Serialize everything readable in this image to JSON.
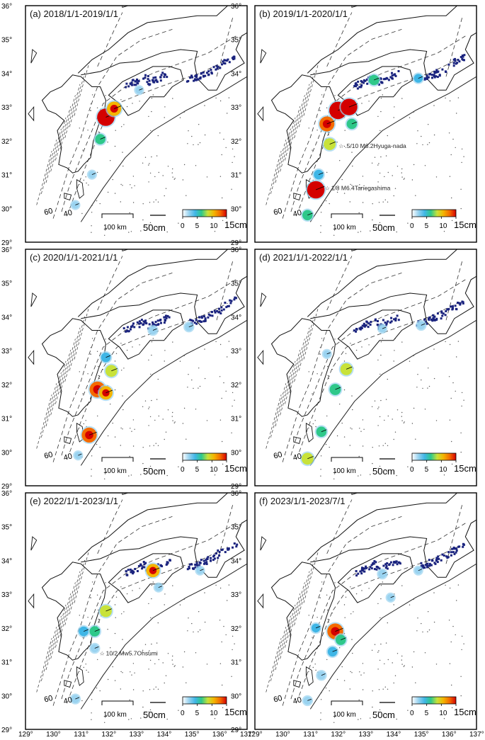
{
  "figure": {
    "lon_ticks": [
      "129°",
      "130°",
      "131°",
      "132°",
      "133°",
      "134°",
      "135°",
      "136°",
      "137°"
    ],
    "lat_ticks": [
      "36°",
      "35°",
      "34°",
      "33°",
      "32°",
      "31°",
      "30°",
      "29°"
    ],
    "lon_range": [
      129,
      137
    ],
    "lat_range": [
      29,
      36
    ],
    "scale_bar_label": "100 km",
    "vector_scale_label": "50cm",
    "colorbar": {
      "ticks": [
        "0",
        "5",
        "10",
        "15cm"
      ],
      "range": [
        0,
        15
      ],
      "colors": [
        "#ffffff",
        "#9ad3f0",
        "#3fb6e6",
        "#2ec88a",
        "#c8e23a",
        "#f4b400",
        "#f46a00",
        "#d40000"
      ]
    },
    "contour_labels": [
      "60",
      "40"
    ]
  },
  "panels": [
    {
      "label": "(a) 2018/1/1-2019/1/1",
      "annotations": [],
      "hotspots": [
        {
          "lon": 131.9,
          "lat": 32.7,
          "amp": 15
        },
        {
          "lon": 132.2,
          "lat": 32.95,
          "amp": 11
        },
        {
          "lon": 131.7,
          "lat": 32.05,
          "amp": 6
        },
        {
          "lon": 131.4,
          "lat": 31.0,
          "amp": 2
        },
        {
          "lon": 130.8,
          "lat": 30.1,
          "amp": 2
        },
        {
          "lon": 133.1,
          "lat": 33.5,
          "amp": 2
        }
      ]
    },
    {
      "label": "(b) 2019/1/1-2020/1/1",
      "annotations": [
        {
          "text": ".5/10 M6.2Hyuga-nada",
          "lon": 132.1,
          "lat": 31.85
        },
        {
          "text": "1/8 M6.4Tanegashima",
          "lon": 131.6,
          "lat": 30.6
        }
      ],
      "hotspots": [
        {
          "lon": 132.0,
          "lat": 32.9,
          "amp": 15
        },
        {
          "lon": 132.4,
          "lat": 33.0,
          "amp": 14
        },
        {
          "lon": 131.6,
          "lat": 32.5,
          "amp": 12
        },
        {
          "lon": 131.7,
          "lat": 31.9,
          "amp": 8
        },
        {
          "lon": 131.2,
          "lat": 30.55,
          "amp": 15
        },
        {
          "lon": 131.3,
          "lat": 31.0,
          "amp": 5
        },
        {
          "lon": 130.9,
          "lat": 29.8,
          "amp": 6
        },
        {
          "lon": 132.5,
          "lat": 32.5,
          "amp": 6
        },
        {
          "lon": 133.3,
          "lat": 33.8,
          "amp": 6
        },
        {
          "lon": 134.9,
          "lat": 33.85,
          "amp": 4
        }
      ]
    },
    {
      "label": "(c) 2020/1/1-2021/1/1",
      "annotations": [],
      "hotspots": [
        {
          "lon": 131.6,
          "lat": 31.85,
          "amp": 13
        },
        {
          "lon": 131.9,
          "lat": 31.75,
          "amp": 10
        },
        {
          "lon": 131.3,
          "lat": 30.5,
          "amp": 12
        },
        {
          "lon": 132.1,
          "lat": 32.4,
          "amp": 8
        },
        {
          "lon": 131.9,
          "lat": 32.8,
          "amp": 5
        },
        {
          "lon": 133.6,
          "lat": 33.6,
          "amp": 3
        },
        {
          "lon": 134.9,
          "lat": 33.7,
          "amp": 3
        },
        {
          "lon": 130.9,
          "lat": 29.9,
          "amp": 2
        }
      ]
    },
    {
      "label": "(d) 2021/1/1-2022/1/1",
      "annotations": [],
      "hotspots": [
        {
          "lon": 132.3,
          "lat": 32.45,
          "amp": 8
        },
        {
          "lon": 131.9,
          "lat": 31.85,
          "amp": 7
        },
        {
          "lon": 131.4,
          "lat": 30.6,
          "amp": 6
        },
        {
          "lon": 130.9,
          "lat": 29.8,
          "amp": 8
        },
        {
          "lon": 131.6,
          "lat": 32.9,
          "amp": 2
        },
        {
          "lon": 133.6,
          "lat": 33.65,
          "amp": 2
        },
        {
          "lon": 135.0,
          "lat": 33.75,
          "amp": 3
        }
      ]
    },
    {
      "label": "(e) 2022/1/1-2023/1/1",
      "annotations": [
        {
          "text": "10/2 Mw5.7Ohsumi",
          "lon": 131.75,
          "lat": 31.25
        }
      ],
      "hotspots": [
        {
          "lon": 133.6,
          "lat": 33.7,
          "amp": 10
        },
        {
          "lon": 131.9,
          "lat": 32.5,
          "amp": 8
        },
        {
          "lon": 131.1,
          "lat": 31.9,
          "amp": 5
        },
        {
          "lon": 131.5,
          "lat": 31.9,
          "amp": 6
        },
        {
          "lon": 131.5,
          "lat": 31.4,
          "amp": 3
        },
        {
          "lon": 130.8,
          "lat": 29.9,
          "amp": 3
        },
        {
          "lon": 133.8,
          "lat": 33.2,
          "amp": 2
        },
        {
          "lon": 135.3,
          "lat": 33.7,
          "amp": 2
        }
      ]
    },
    {
      "label": "(f) 2023/1/1-2023/7/1",
      "annotations": [],
      "hotspots": [
        {
          "lon": 131.9,
          "lat": 31.9,
          "amp": 13
        },
        {
          "lon": 132.1,
          "lat": 31.65,
          "amp": 6
        },
        {
          "lon": 131.2,
          "lat": 32.0,
          "amp": 4
        },
        {
          "lon": 131.8,
          "lat": 31.3,
          "amp": 5
        },
        {
          "lon": 131.4,
          "lat": 30.6,
          "amp": 3
        },
        {
          "lon": 130.9,
          "lat": 29.85,
          "amp": 3
        },
        {
          "lon": 133.6,
          "lat": 33.6,
          "amp": 3
        },
        {
          "lon": 133.9,
          "lat": 32.9,
          "amp": 2
        },
        {
          "lon": 134.9,
          "lat": 33.7,
          "amp": 2
        }
      ]
    }
  ]
}
